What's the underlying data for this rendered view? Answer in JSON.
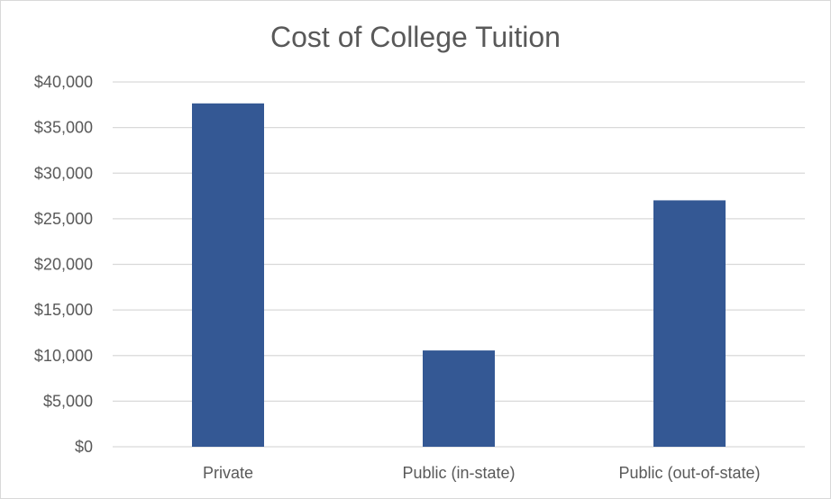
{
  "chart_data": {
    "type": "bar",
    "title": "Cost of College Tuition",
    "categories": [
      "Private",
      "Public (in-state)",
      "Public (out-of-state)"
    ],
    "values": [
      37650,
      10560,
      27020
    ],
    "ylim": [
      0,
      40000
    ],
    "yticks": [
      0,
      5000,
      10000,
      15000,
      20000,
      25000,
      30000,
      35000,
      40000
    ],
    "ytick_labels": [
      "$0",
      "$5,000",
      "$10,000",
      "$15,000",
      "$20,000",
      "$25,000",
      "$30,000",
      "$35,000",
      "$40,000"
    ],
    "xlabel": "",
    "ylabel": "",
    "grid": true,
    "legend": "none",
    "bar_color": "#345894",
    "grid_color": "#d9d9d9"
  }
}
